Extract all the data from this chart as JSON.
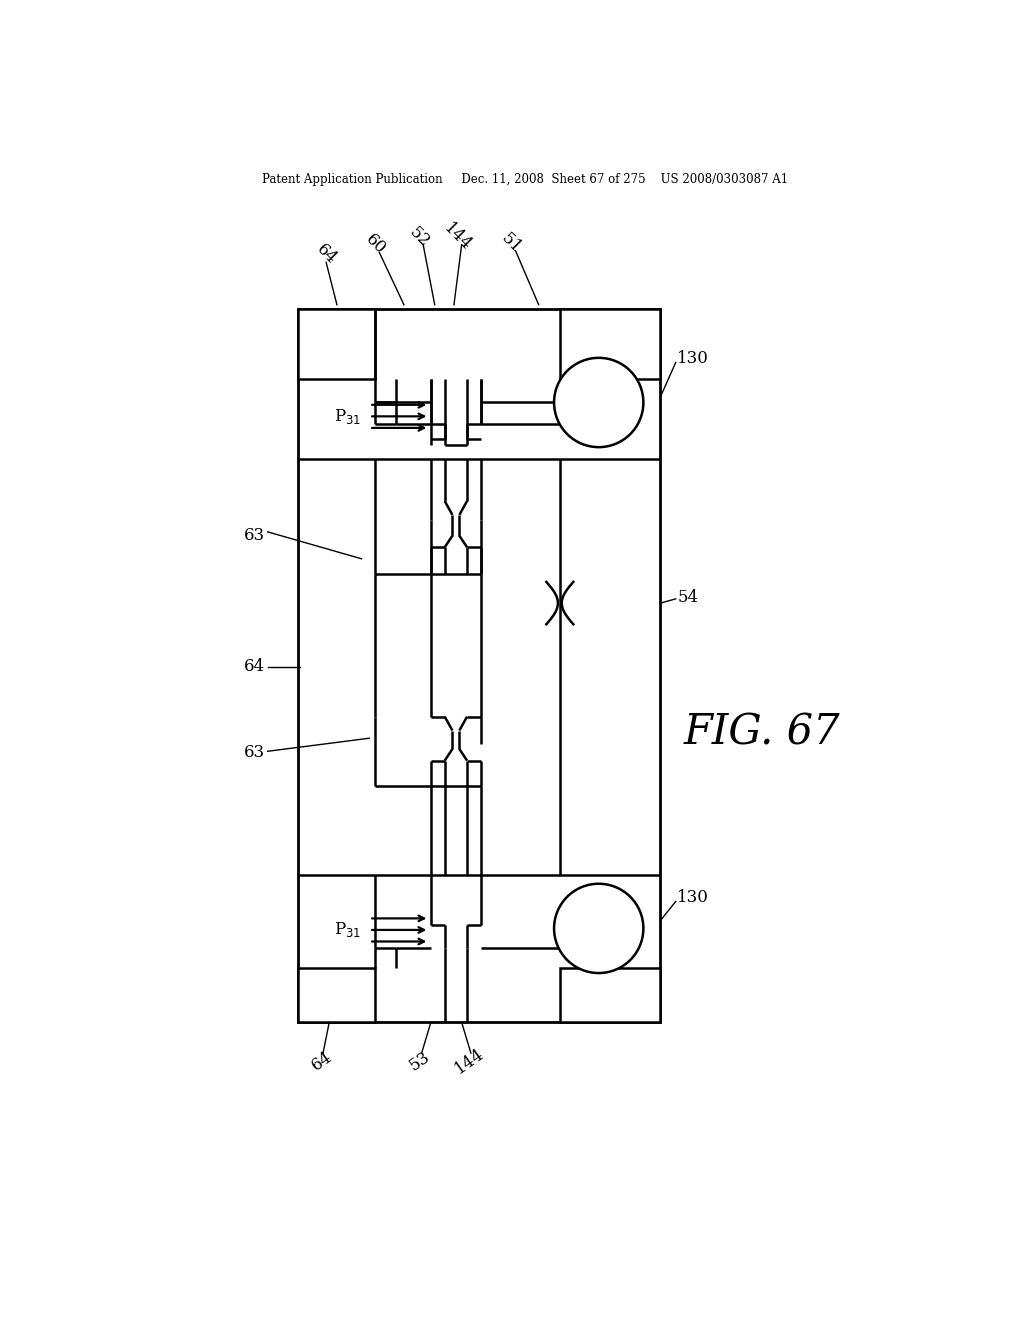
{
  "bg_color": "#ffffff",
  "line_color": "#000000",
  "header_text": "Patent Application Publication     Dec. 11, 2008  Sheet 67 of 275    US 2008/0303087 A1",
  "fig_label": "FIG. 67"
}
